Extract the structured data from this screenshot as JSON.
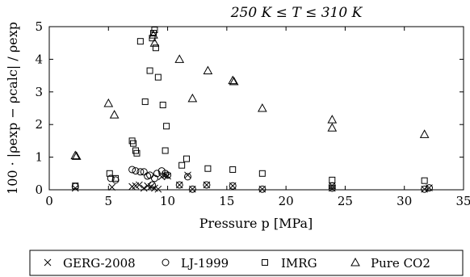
{
  "chart_data": {
    "type": "scatter",
    "title": "250 K ≤ T ≤ 310 K",
    "xlabel": "Pressure p [MPa]",
    "ylabel": "100 · |ρexp − ρcalc| / ρexp",
    "xlim": [
      0,
      35
    ],
    "ylim": [
      0,
      5
    ],
    "x_ticks": [
      0,
      5,
      10,
      15,
      20,
      25,
      30,
      35
    ],
    "y_ticks": [
      0,
      1,
      2,
      3,
      4,
      5
    ],
    "grid": false,
    "legend_position": "bottom",
    "series": [
      {
        "name": "GERG-2008",
        "marker": "x",
        "points": [
          [
            2.2,
            0.05
          ],
          [
            5.3,
            0.08
          ],
          [
            7.0,
            0.1
          ],
          [
            7.3,
            0.12
          ],
          [
            7.6,
            0.15
          ],
          [
            8.0,
            0.05
          ],
          [
            8.3,
            0.12
          ],
          [
            8.6,
            0.1
          ],
          [
            8.9,
            0.05
          ],
          [
            9.2,
            0.02
          ],
          [
            9.5,
            0.4
          ],
          [
            9.8,
            0.45
          ],
          [
            10.0,
            0.42
          ],
          [
            11.0,
            0.15
          ],
          [
            11.7,
            0.45
          ],
          [
            12.1,
            0.02
          ],
          [
            13.3,
            0.15
          ],
          [
            15.5,
            0.12
          ],
          [
            18.0,
            0.02
          ],
          [
            23.9,
            0.05
          ],
          [
            23.9,
            0.12
          ],
          [
            31.7,
            0.02
          ],
          [
            32.1,
            0.06
          ]
        ]
      },
      {
        "name": "LJ-1999",
        "marker": "circle",
        "points": [
          [
            2.2,
            0.1
          ],
          [
            5.2,
            0.35
          ],
          [
            5.6,
            0.3
          ],
          [
            7.0,
            0.62
          ],
          [
            7.3,
            0.58
          ],
          [
            7.7,
            0.55
          ],
          [
            8.0,
            0.55
          ],
          [
            8.3,
            0.42
          ],
          [
            8.5,
            0.45
          ],
          [
            8.7,
            0.15
          ],
          [
            8.9,
            0.35
          ],
          [
            9.1,
            0.5
          ],
          [
            9.5,
            0.58
          ],
          [
            9.8,
            0.5
          ],
          [
            10.0,
            0.45
          ],
          [
            11.0,
            0.15
          ],
          [
            11.7,
            0.4
          ],
          [
            12.1,
            0.02
          ],
          [
            13.3,
            0.15
          ],
          [
            15.5,
            0.12
          ],
          [
            18.0,
            0.02
          ],
          [
            23.9,
            0.05
          ],
          [
            23.9,
            0.12
          ],
          [
            31.7,
            0.02
          ],
          [
            32.1,
            0.06
          ]
        ]
      },
      {
        "name": "IMRG",
        "marker": "square",
        "points": [
          [
            2.2,
            0.12
          ],
          [
            5.1,
            0.5
          ],
          [
            5.6,
            0.35
          ],
          [
            7.0,
            1.5
          ],
          [
            7.1,
            1.42
          ],
          [
            7.3,
            1.2
          ],
          [
            7.4,
            1.12
          ],
          [
            7.7,
            4.55
          ],
          [
            8.1,
            2.7
          ],
          [
            8.5,
            3.65
          ],
          [
            8.7,
            4.65
          ],
          [
            8.8,
            4.8
          ],
          [
            8.9,
            4.9
          ],
          [
            9.0,
            4.35
          ],
          [
            9.2,
            3.45
          ],
          [
            9.6,
            2.6
          ],
          [
            9.9,
            1.95
          ],
          [
            9.8,
            1.2
          ],
          [
            11.2,
            0.75
          ],
          [
            11.6,
            0.95
          ],
          [
            13.4,
            0.65
          ],
          [
            15.5,
            0.62
          ],
          [
            18.0,
            0.5
          ],
          [
            23.9,
            0.3
          ],
          [
            31.7,
            0.28
          ]
        ]
      },
      {
        "name": "Pure CO2",
        "marker": "triangle",
        "points": [
          [
            2.2,
            1.05
          ],
          [
            2.3,
            1.03
          ],
          [
            5.0,
            2.65
          ],
          [
            5.5,
            2.3
          ],
          [
            8.8,
            4.75
          ],
          [
            8.9,
            4.5
          ],
          [
            11.0,
            4.0
          ],
          [
            12.1,
            2.8
          ],
          [
            13.4,
            3.65
          ],
          [
            15.5,
            3.35
          ],
          [
            15.6,
            3.32
          ],
          [
            18.0,
            2.5
          ],
          [
            23.9,
            2.15
          ],
          [
            23.9,
            1.9
          ],
          [
            31.7,
            1.7
          ]
        ]
      }
    ]
  }
}
